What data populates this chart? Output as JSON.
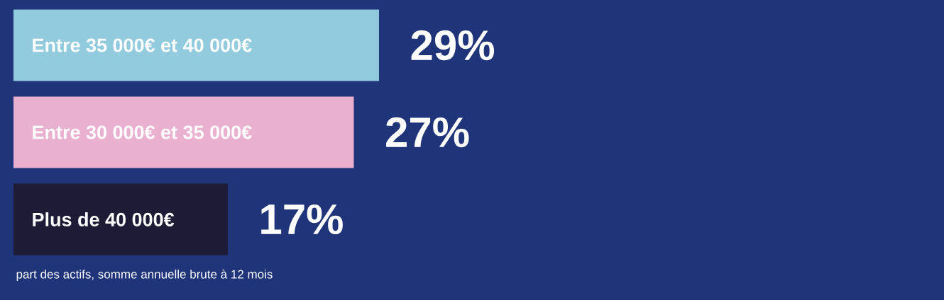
{
  "chart_data": {
    "type": "bar",
    "orientation": "horizontal",
    "categories": [
      "Entre 35 000€ et 40 000€",
      "Entre 30 000€ et 35 000€",
      "Plus de 40 000€"
    ],
    "values": [
      29,
      27,
      17
    ],
    "colors": [
      "#92cade",
      "#e9b0cf",
      "#1d1b35"
    ],
    "value_labels": [
      "29%",
      "27%",
      "17%"
    ],
    "annotations": [
      "part des actifs, somme annuelle brute à 12 mois"
    ]
  }
}
